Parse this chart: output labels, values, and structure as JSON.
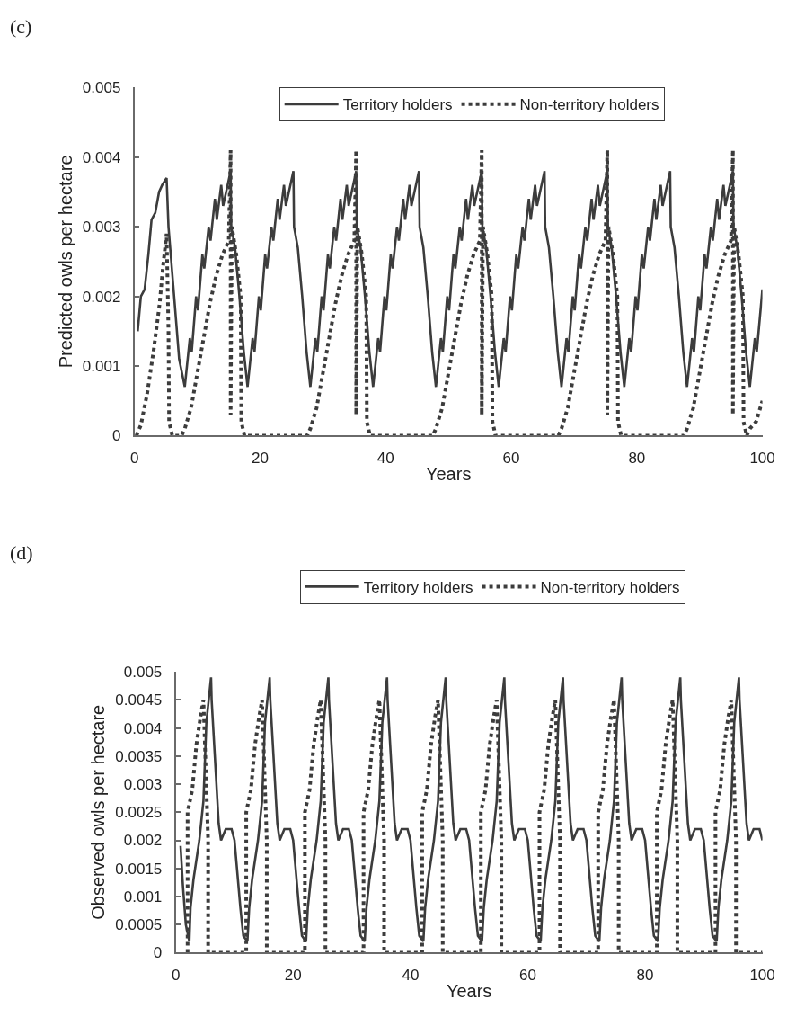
{
  "chart_data": [
    {
      "type": "line",
      "title": "(c)",
      "xlabel": "Years",
      "ylabel": "Predicted owls per hectare",
      "xlim": [
        0,
        100
      ],
      "xticks": [
        0,
        20,
        40,
        60,
        80,
        100
      ],
      "ylim": [
        0,
        0.005
      ],
      "yticks": [
        0,
        0.001,
        0.002,
        0.003,
        0.004,
        0.005
      ],
      "legend": "top",
      "series": [
        {
          "name": "Territory holders",
          "color": "#3c3c3c",
          "line_style": "solid",
          "x": [
            0.5,
            1,
            1.6,
            2.2,
            2.7,
            3.3,
            3.9,
            4.4,
            5.1,
            5.4,
            6.3,
            7.1,
            8,
            8.8,
            9.1,
            9.8,
            10.1,
            10.8,
            11.1,
            11.8,
            12.1,
            12.8,
            13.1,
            13.8,
            14.1,
            15.3,
            15.4,
            16,
            16.7,
            17.4,
            18,
            18.8,
            19.1,
            19.8,
            20.1,
            20.8,
            21.1,
            21.8,
            22.1,
            22.8,
            23.1,
            23.8,
            24.1,
            25.3,
            25.4,
            26,
            26.7,
            27.4,
            28,
            28.8,
            29.1,
            29.8,
            30.1,
            30.8,
            31.1,
            31.8,
            32.1,
            32.8,
            33.1,
            33.8,
            34.1,
            35.3,
            35.4,
            36,
            36.7,
            37.4,
            38,
            38.8,
            39.1,
            39.8,
            40.1,
            40.8,
            41.1,
            41.8,
            42.1,
            42.8,
            43.1,
            43.8,
            44.1,
            45.3,
            45.4,
            46,
            46.7,
            47.4,
            48,
            48.8,
            49.1,
            49.8,
            50.1,
            50.8,
            51.1,
            51.8,
            52.1,
            52.8,
            53.1,
            53.8,
            54.1,
            55.3,
            55.4,
            56,
            56.7,
            57.4,
            58,
            58.8,
            59.1,
            59.8,
            60.1,
            60.8,
            61.1,
            61.8,
            62.1,
            62.8,
            63.1,
            63.8,
            64.1,
            65.3,
            65.4,
            66,
            66.7,
            67.4,
            68,
            68.8,
            69.1,
            69.8,
            70.1,
            70.8,
            71.1,
            71.8,
            72.1,
            72.8,
            73.1,
            73.8,
            74.1,
            75.3,
            75.4,
            76,
            76.7,
            77.4,
            78,
            78.8,
            79.1,
            79.8,
            80.1,
            80.8,
            81.1,
            81.8,
            82.1,
            82.8,
            83.1,
            83.8,
            84.1,
            85.3,
            85.4,
            86,
            86.7,
            87.4,
            88,
            88.8,
            89.1,
            89.8,
            90.1,
            90.8,
            91.1,
            91.8,
            92.1,
            92.8,
            93.1,
            93.8,
            94.1,
            95.3,
            95.4,
            96,
            96.7,
            97.4,
            98,
            98.8,
            99.1,
            100
          ],
          "values": [
            0.0015,
            0.002,
            0.0021,
            0.0026,
            0.0031,
            0.0032,
            0.0035,
            0.0036,
            0.0037,
            0.003,
            0.002,
            0.0011,
            0.0007,
            0.0014,
            0.0012,
            0.002,
            0.0018,
            0.0026,
            0.0024,
            0.003,
            0.0028,
            0.0034,
            0.0031,
            0.0036,
            0.0033,
            0.0038,
            0.003,
            0.0027,
            0.002,
            0.0012,
            0.0007,
            0.0014,
            0.0012,
            0.002,
            0.0018,
            0.0026,
            0.0024,
            0.003,
            0.0028,
            0.0034,
            0.0031,
            0.0036,
            0.0033,
            0.0038,
            0.003,
            0.0027,
            0.002,
            0.0012,
            0.0007,
            0.0014,
            0.0012,
            0.002,
            0.0018,
            0.0026,
            0.0024,
            0.003,
            0.0028,
            0.0034,
            0.0031,
            0.0036,
            0.0033,
            0.0038,
            0.003,
            0.0027,
            0.002,
            0.0012,
            0.0007,
            0.0014,
            0.0012,
            0.002,
            0.0018,
            0.0026,
            0.0024,
            0.003,
            0.0028,
            0.0034,
            0.0031,
            0.0036,
            0.0033,
            0.0038,
            0.003,
            0.0027,
            0.002,
            0.0012,
            0.0007,
            0.0014,
            0.0012,
            0.002,
            0.0018,
            0.0026,
            0.0024,
            0.003,
            0.0028,
            0.0034,
            0.0031,
            0.0036,
            0.0033,
            0.0038,
            0.003,
            0.0027,
            0.002,
            0.0012,
            0.0007,
            0.0014,
            0.0012,
            0.002,
            0.0018,
            0.0026,
            0.0024,
            0.003,
            0.0028,
            0.0034,
            0.0031,
            0.0036,
            0.0033,
            0.0038,
            0.003,
            0.0027,
            0.002,
            0.0012,
            0.0007,
            0.0014,
            0.0012,
            0.002,
            0.0018,
            0.0026,
            0.0024,
            0.003,
            0.0028,
            0.0034,
            0.0031,
            0.0036,
            0.0033,
            0.0038,
            0.003,
            0.0027,
            0.002,
            0.0012,
            0.0007,
            0.0014,
            0.0012,
            0.002,
            0.0018,
            0.0026,
            0.0024,
            0.003,
            0.0028,
            0.0034,
            0.0031,
            0.0036,
            0.0033,
            0.0038,
            0.003,
            0.0027,
            0.002,
            0.0012,
            0.0007,
            0.0014,
            0.0012,
            0.002,
            0.0018,
            0.0026,
            0.0024,
            0.003,
            0.0028,
            0.0034,
            0.0031,
            0.0036,
            0.0033,
            0.0038,
            0.003,
            0.0027,
            0.002,
            0.0012,
            0.0007,
            0.0014,
            0.0012,
            0.0021
          ]
        },
        {
          "name": "Non-territory holders",
          "color": "#3c3c3c",
          "line_style": "dotted",
          "x": [
            0.3,
            1,
            2,
            3,
            4,
            4.5,
            5.1,
            5.4,
            5.5,
            6,
            7.5,
            8,
            9,
            10,
            11,
            12,
            13,
            14,
            15,
            15.3,
            15.3,
            15.5,
            16.2,
            16.9,
            17,
            17.5,
            27.5,
            28,
            29,
            30,
            31,
            32,
            33,
            34,
            35,
            35.3,
            35.3,
            35.5,
            36.2,
            36.9,
            37,
            37.5,
            47.5,
            48,
            49,
            50,
            51,
            52,
            53,
            54,
            55,
            55.3,
            55.3,
            55.5,
            56.2,
            56.9,
            57,
            57.5,
            67.5,
            68,
            69,
            70,
            71,
            72,
            73,
            74,
            75,
            75.3,
            75.3,
            75.5,
            76.2,
            76.9,
            77,
            77.5,
            87.5,
            88,
            89,
            90,
            91,
            92,
            93,
            94,
            95,
            95.3,
            95.3,
            95.5,
            96.2,
            96.9,
            97,
            97.5,
            98,
            99,
            100
          ],
          "values": [
            0,
            0.00015,
            0.0006,
            0.0012,
            0.0019,
            0.0024,
            0.0029,
            0.0015,
            0.0002,
            0,
            0,
            0.0001,
            0.0004,
            0.0009,
            0.0014,
            0.0019,
            0.0023,
            0.0026,
            0.0028,
            0.0041,
            0.0003,
            0.003,
            0.0026,
            0.002,
            0.0002,
            0,
            0,
            0.0001,
            0.0004,
            0.0009,
            0.0014,
            0.0019,
            0.0023,
            0.0026,
            0.0028,
            0.0041,
            0.0003,
            0.003,
            0.0026,
            0.002,
            0.0002,
            0,
            0,
            0.0001,
            0.0004,
            0.0009,
            0.0014,
            0.0019,
            0.0023,
            0.0026,
            0.0028,
            0.0041,
            0.0003,
            0.003,
            0.0026,
            0.002,
            0.0002,
            0,
            0,
            0.0001,
            0.0004,
            0.0009,
            0.0014,
            0.0019,
            0.0023,
            0.0026,
            0.0028,
            0.0041,
            0.0003,
            0.003,
            0.0026,
            0.002,
            0.0002,
            0,
            0,
            0.0001,
            0.0004,
            0.0009,
            0.0014,
            0.0019,
            0.0023,
            0.0026,
            0.0028,
            0.0041,
            0.0003,
            0.003,
            0.0026,
            0.002,
            0.0002,
            0,
            0.0001,
            0.0002,
            0.0005
          ]
        }
      ]
    },
    {
      "type": "line",
      "title": "(d)",
      "xlabel": "Years",
      "ylabel": "Observed owls per hectare",
      "xlim": [
        0,
        100
      ],
      "xticks": [
        0,
        20,
        40,
        60,
        80,
        100
      ],
      "ylim": [
        0,
        0.005
      ],
      "yticks": [
        0,
        0.0005,
        0.001,
        0.0015,
        0.002,
        0.0025,
        0.003,
        0.0035,
        0.004,
        0.0045,
        0.005
      ],
      "legend": "top",
      "series": [
        {
          "name": "Territory holders",
          "color": "#3c3c3c",
          "line_style": "solid",
          "x": [
            0.8,
            1.2,
            1.7,
            2.3,
            2.5,
            3,
            4,
            4.7,
            5.2,
            5.6,
            6,
            6.1,
            7.3,
            7.7,
            8.5,
            9.5,
            10,
            11,
            11.5,
            12.2,
            12.5,
            13,
            14,
            14.7,
            15.2,
            15.6,
            16,
            16.1,
            17.3,
            17.7,
            18.5,
            19.5,
            20,
            21,
            21.5,
            22.2,
            22.5,
            23,
            24,
            24.7,
            25.2,
            25.6,
            26,
            26.1,
            27.3,
            27.7,
            28.5,
            29.5,
            30,
            31,
            31.5,
            32.2,
            32.5,
            33,
            34,
            34.7,
            35.2,
            35.6,
            36,
            36.1,
            37.3,
            37.7,
            38.5,
            39.5,
            40,
            41,
            41.5,
            42.2,
            42.5,
            43,
            44,
            44.7,
            45.2,
            45.6,
            46,
            46.1,
            47.3,
            47.7,
            48.5,
            49.5,
            50,
            51,
            51.5,
            52.2,
            52.5,
            53,
            54,
            54.7,
            55.2,
            55.6,
            56,
            56.1,
            57.3,
            57.7,
            58.5,
            59.5,
            60,
            61,
            61.5,
            62.2,
            62.5,
            63,
            64,
            64.7,
            65.2,
            65.6,
            66,
            66.1,
            67.3,
            67.7,
            68.5,
            69.5,
            70,
            71,
            71.5,
            72.2,
            72.5,
            73,
            74,
            74.7,
            75.2,
            75.6,
            76,
            76.1,
            77.3,
            77.7,
            78.5,
            79.5,
            80,
            81,
            81.5,
            82.2,
            82.5,
            83,
            84,
            84.7,
            85.2,
            85.6,
            86,
            86.1,
            87.3,
            87.7,
            88.5,
            89.5,
            90,
            91,
            91.5,
            92.2,
            92.5,
            93,
            94,
            94.7,
            95.2,
            95.6,
            96,
            96.1,
            97.3,
            97.7,
            98.5,
            99.5,
            100
          ],
          "values": [
            0.0019,
            0.0012,
            0.0005,
            0.0002,
            0.0008,
            0.0013,
            0.002,
            0.0027,
            0.0041,
            0.0045,
            0.0049,
            0.0045,
            0.0023,
            0.002,
            0.0022,
            0.0022,
            0.002,
            0.0008,
            0.0003,
            0.0002,
            0.0008,
            0.0013,
            0.002,
            0.0027,
            0.0041,
            0.0045,
            0.0049,
            0.0045,
            0.0023,
            0.002,
            0.0022,
            0.0022,
            0.002,
            0.0008,
            0.0003,
            0.0002,
            0.0008,
            0.0013,
            0.002,
            0.0027,
            0.0041,
            0.0045,
            0.0049,
            0.0045,
            0.0023,
            0.002,
            0.0022,
            0.0022,
            0.002,
            0.0008,
            0.0003,
            0.0002,
            0.0008,
            0.0013,
            0.002,
            0.0027,
            0.0041,
            0.0045,
            0.0049,
            0.0045,
            0.0023,
            0.002,
            0.0022,
            0.0022,
            0.002,
            0.0008,
            0.0003,
            0.0002,
            0.0008,
            0.0013,
            0.002,
            0.0027,
            0.0041,
            0.0045,
            0.0049,
            0.0045,
            0.0023,
            0.002,
            0.0022,
            0.0022,
            0.002,
            0.0008,
            0.0003,
            0.0002,
            0.0008,
            0.0013,
            0.002,
            0.0027,
            0.0041,
            0.0045,
            0.0049,
            0.0045,
            0.0023,
            0.002,
            0.0022,
            0.0022,
            0.002,
            0.0008,
            0.0003,
            0.0002,
            0.0008,
            0.0013,
            0.002,
            0.0027,
            0.0041,
            0.0045,
            0.0049,
            0.0045,
            0.0023,
            0.002,
            0.0022,
            0.0022,
            0.002,
            0.0008,
            0.0003,
            0.0002,
            0.0008,
            0.0013,
            0.002,
            0.0027,
            0.0041,
            0.0045,
            0.0049,
            0.0045,
            0.0023,
            0.002,
            0.0022,
            0.0022,
            0.002,
            0.0008,
            0.0003,
            0.0002,
            0.0008,
            0.0013,
            0.002,
            0.0027,
            0.0041,
            0.0045,
            0.0049,
            0.0045,
            0.0023,
            0.002,
            0.0022,
            0.0022,
            0.002,
            0.0008,
            0.0003,
            0.0002,
            0.0008,
            0.0013,
            0.002,
            0.0027,
            0.0041,
            0.0045,
            0.0049,
            0.0045,
            0.0023,
            0.002,
            0.0022,
            0.0022,
            0.002
          ]
        },
        {
          "name": "Non-territory holders",
          "color": "#3c3c3c",
          "line_style": "dotted",
          "x": [
            2,
            2,
            2.8,
            3.5,
            4.2,
            4.7,
            5.5,
            5.5,
            12,
            12,
            12.8,
            13.5,
            14.2,
            14.7,
            15.5,
            15.5,
            22,
            22,
            22.8,
            23.5,
            24.2,
            24.7,
            25.5,
            25.5,
            32,
            32,
            32.8,
            33.5,
            34.2,
            34.7,
            35.5,
            35.5,
            42,
            42,
            42.8,
            43.5,
            44.2,
            44.7,
            45.5,
            45.5,
            52,
            52,
            52.8,
            53.5,
            54.2,
            54.7,
            55.5,
            55.5,
            62,
            62,
            62.8,
            63.5,
            64.2,
            64.7,
            65.5,
            65.5,
            72,
            72,
            72.8,
            73.5,
            74.2,
            74.7,
            75.5,
            75.5,
            82,
            82,
            82.8,
            83.5,
            84.2,
            84.7,
            85.5,
            85.5,
            92,
            92,
            92.8,
            93.5,
            94.2,
            94.7,
            95.5,
            95.5,
            100
          ],
          "values": [
            0,
            0.0025,
            0.0029,
            0.0037,
            0.0042,
            0.0045,
            0.002,
            0,
            0,
            0.0025,
            0.0029,
            0.0037,
            0.0042,
            0.0045,
            0.002,
            0,
            0,
            0.0025,
            0.0029,
            0.0037,
            0.0042,
            0.0045,
            0.002,
            0,
            0,
            0.0025,
            0.0029,
            0.0037,
            0.0042,
            0.0045,
            0.002,
            0,
            0,
            0.0025,
            0.0029,
            0.0037,
            0.0042,
            0.0045,
            0.002,
            0,
            0,
            0.0025,
            0.0029,
            0.0037,
            0.0042,
            0.0045,
            0.002,
            0,
            0,
            0.0025,
            0.0029,
            0.0037,
            0.0042,
            0.0045,
            0.002,
            0,
            0,
            0.0025,
            0.0029,
            0.0037,
            0.0042,
            0.0045,
            0.002,
            0,
            0,
            0.0025,
            0.0029,
            0.0037,
            0.0042,
            0.0045,
            0.002,
            0,
            0,
            0.0025,
            0.0029,
            0.0037,
            0.0042,
            0.0045,
            0.002,
            0,
            0
          ]
        }
      ]
    }
  ]
}
